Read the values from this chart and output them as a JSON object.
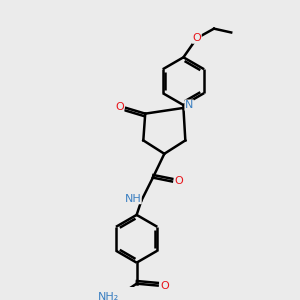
{
  "background_color": "#ebebeb",
  "line_color": "#000000",
  "bond_width": 1.8,
  "atom_colors": {
    "N": "#3a7fc1",
    "O": "#e8151b",
    "C": "#000000",
    "H": "#3a7fc1"
  },
  "font_size_atom": 8,
  "font_size_small": 7
}
